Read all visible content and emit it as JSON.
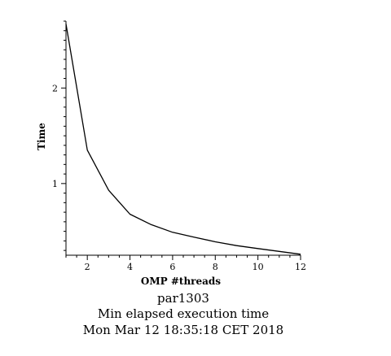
{
  "chart_data": {
    "type": "line",
    "title": "Min elapsed execution time",
    "xlabel": "OMP #threads",
    "ylabel": "Time",
    "x": [
      1,
      2,
      3,
      4,
      5,
      6,
      7,
      8,
      9,
      10,
      11,
      12
    ],
    "series": [
      {
        "values": [
          2.67,
          1.35,
          0.93,
          0.68,
          0.57,
          0.49,
          0.44,
          0.39,
          0.35,
          0.32,
          0.29,
          0.26
        ]
      }
    ],
    "xlim": [
      1,
      12
    ],
    "ylim": [
      0.25,
      2.7
    ],
    "xticks": [
      2,
      4,
      6,
      8,
      10,
      12
    ],
    "yticks": [
      1,
      2
    ],
    "grid": false,
    "color": "#000000"
  },
  "captions": {
    "line1": "par1303",
    "line2": "Min elapsed execution time",
    "line3": "Mon Mar 12 18:35:18 CET 2018"
  }
}
